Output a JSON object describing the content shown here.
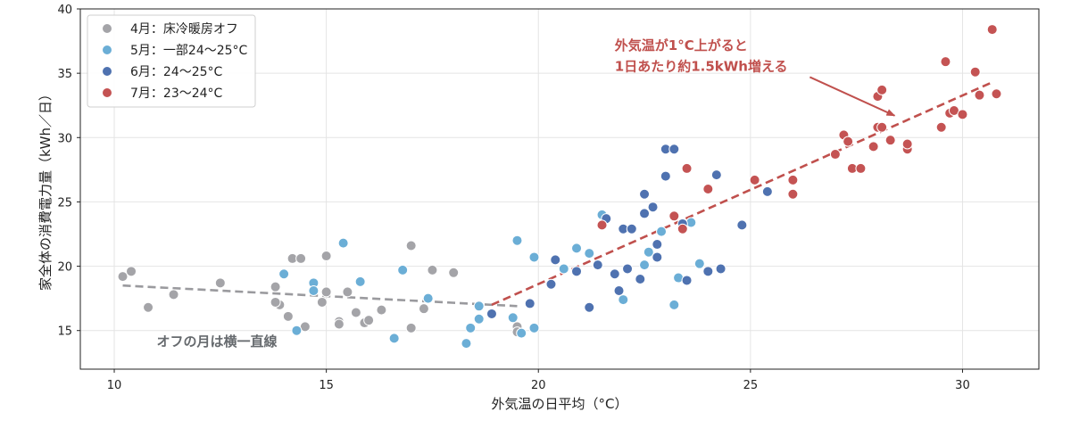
{
  "chart_data": {
    "type": "scatter",
    "title": "",
    "xlabel": "外気温の日平均（°C）",
    "ylabel": "家全体の消費電力量（kWh／日）",
    "xlim": [
      9.2,
      31.8
    ],
    "ylim": [
      12,
      40
    ],
    "x_ticks": [
      10,
      15,
      20,
      25,
      30
    ],
    "y_ticks": [
      15,
      20,
      25,
      30,
      35,
      40
    ],
    "grid": true,
    "legend_position": "top-left",
    "series": [
      {
        "name": "4月：床冷暖房オフ",
        "color": "#a4a4a8",
        "points": [
          [
            10.2,
            19.2
          ],
          [
            10.4,
            19.6
          ],
          [
            10.8,
            16.8
          ],
          [
            11.4,
            17.8
          ],
          [
            12.5,
            18.7
          ],
          [
            13.8,
            18.4
          ],
          [
            13.9,
            17.0
          ],
          [
            13.8,
            17.2
          ],
          [
            14.1,
            16.1
          ],
          [
            14.2,
            20.6
          ],
          [
            14.4,
            20.6
          ],
          [
            14.5,
            15.3
          ],
          [
            14.9,
            17.2
          ],
          [
            15.0,
            20.8
          ],
          [
            15.0,
            18.0
          ],
          [
            15.3,
            15.7
          ],
          [
            15.3,
            15.5
          ],
          [
            15.5,
            18.0
          ],
          [
            15.7,
            16.4
          ],
          [
            15.9,
            15.6
          ],
          [
            16.0,
            15.8
          ],
          [
            16.3,
            16.6
          ],
          [
            17.0,
            21.6
          ],
          [
            17.0,
            15.2
          ],
          [
            17.3,
            16.7
          ],
          [
            17.5,
            19.7
          ],
          [
            18.0,
            19.5
          ],
          [
            19.5,
            15.3
          ],
          [
            19.5,
            14.9
          ]
        ]
      },
      {
        "name": "5月：一部24〜25°C",
        "color": "#6baed6",
        "points": [
          [
            14.0,
            19.4
          ],
          [
            14.3,
            15.0
          ],
          [
            14.7,
            18.7
          ],
          [
            14.7,
            18.1
          ],
          [
            15.4,
            21.8
          ],
          [
            15.8,
            18.8
          ],
          [
            16.6,
            14.4
          ],
          [
            16.8,
            19.7
          ],
          [
            17.4,
            17.5
          ],
          [
            18.3,
            14.0
          ],
          [
            18.4,
            15.2
          ],
          [
            18.6,
            16.9
          ],
          [
            18.6,
            15.9
          ],
          [
            19.4,
            16.0
          ],
          [
            19.5,
            22.0
          ],
          [
            19.6,
            14.8
          ],
          [
            19.9,
            15.2
          ],
          [
            19.9,
            20.7
          ],
          [
            20.6,
            19.8
          ],
          [
            20.9,
            21.4
          ],
          [
            21.2,
            21.0
          ],
          [
            21.5,
            24.0
          ],
          [
            22.0,
            17.4
          ],
          [
            22.5,
            20.1
          ],
          [
            22.6,
            21.1
          ],
          [
            22.9,
            22.7
          ],
          [
            23.2,
            17.0
          ],
          [
            23.3,
            19.1
          ],
          [
            23.6,
            23.4
          ],
          [
            23.8,
            20.2
          ]
        ]
      },
      {
        "name": "6月：24〜25°C",
        "color": "#4f72b0",
        "points": [
          [
            18.9,
            16.3
          ],
          [
            19.8,
            17.1
          ],
          [
            20.3,
            18.6
          ],
          [
            20.4,
            20.5
          ],
          [
            20.9,
            19.6
          ],
          [
            21.2,
            16.8
          ],
          [
            21.4,
            20.1
          ],
          [
            21.6,
            23.7
          ],
          [
            21.8,
            19.4
          ],
          [
            21.9,
            18.1
          ],
          [
            22.0,
            22.9
          ],
          [
            22.1,
            19.8
          ],
          [
            22.2,
            22.9
          ],
          [
            22.4,
            19.0
          ],
          [
            22.5,
            25.6
          ],
          [
            22.5,
            24.1
          ],
          [
            22.7,
            24.6
          ],
          [
            22.8,
            21.7
          ],
          [
            22.8,
            20.7
          ],
          [
            23.0,
            29.1
          ],
          [
            23.0,
            27.0
          ],
          [
            23.2,
            29.1
          ],
          [
            23.4,
            23.3
          ],
          [
            23.5,
            18.9
          ],
          [
            24.0,
            19.6
          ],
          [
            24.2,
            27.1
          ],
          [
            24.3,
            19.8
          ],
          [
            24.8,
            23.2
          ],
          [
            25.4,
            25.8
          ]
        ]
      },
      {
        "name": "7月：23〜24°C",
        "color": "#c45353",
        "points": [
          [
            21.5,
            23.2
          ],
          [
            23.2,
            23.9
          ],
          [
            23.4,
            22.9
          ],
          [
            23.5,
            27.6
          ],
          [
            24.0,
            26.0
          ],
          [
            25.1,
            26.7
          ],
          [
            26.0,
            26.7
          ],
          [
            26.0,
            25.6
          ],
          [
            27.0,
            28.7
          ],
          [
            27.2,
            30.2
          ],
          [
            27.3,
            29.7
          ],
          [
            27.4,
            27.6
          ],
          [
            27.6,
            27.6
          ],
          [
            27.9,
            29.3
          ],
          [
            28.0,
            30.8
          ],
          [
            28.0,
            33.2
          ],
          [
            28.1,
            33.7
          ],
          [
            28.1,
            30.8
          ],
          [
            28.3,
            29.8
          ],
          [
            28.7,
            29.1
          ],
          [
            28.7,
            29.5
          ],
          [
            29.5,
            30.8
          ],
          [
            29.6,
            35.9
          ],
          [
            29.7,
            31.9
          ],
          [
            29.8,
            32.1
          ],
          [
            30.0,
            31.8
          ],
          [
            30.3,
            35.1
          ],
          [
            30.4,
            33.3
          ],
          [
            30.7,
            38.4
          ],
          [
            30.8,
            33.4
          ]
        ]
      }
    ],
    "trend_lines": [
      {
        "color": "#9a9a9e",
        "from": [
          10.2,
          18.5
        ],
        "to": [
          19.5,
          16.9
        ]
      },
      {
        "color": "#c0504d",
        "from": [
          18.9,
          17.0
        ],
        "to": [
          30.7,
          34.3
        ]
      }
    ],
    "annotations": [
      {
        "text": "外気温が1°C上がると",
        "at": [
          21.8,
          36.8
        ],
        "color": "#c0504d"
      },
      {
        "text": "1日あたり約1.5kWh増える",
        "at": [
          21.8,
          35.2
        ],
        "color": "#c0504d"
      },
      {
        "text": "オフの月は横一直線",
        "at": [
          11.0,
          13.8
        ],
        "color": "#666a6e"
      }
    ],
    "arrow": {
      "from": [
        26.4,
        34.7
      ],
      "to": [
        28.4,
        31.7
      ],
      "color": "#c0504d"
    }
  }
}
